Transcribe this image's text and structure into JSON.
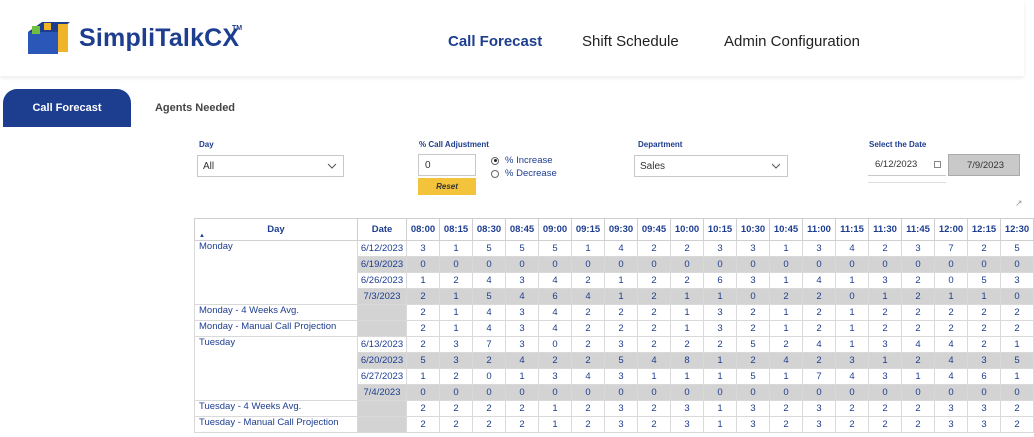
{
  "app": {
    "logo_text": "SimpliTalkCX",
    "logo_tm": "TM"
  },
  "nav": {
    "items": [
      "Call Forecast",
      "Shift Schedule",
      "Admin Configuration"
    ],
    "active": "Call Forecast"
  },
  "subtabs": {
    "items": [
      "Call Forecast",
      "Agents Needed"
    ],
    "active": "Call Forecast"
  },
  "filters": {
    "day": {
      "label": "Day",
      "value": "All"
    },
    "call_adjustment": {
      "label": "% Call Adjustment",
      "value": "0",
      "reset_label": "Reset",
      "options": [
        "% Increase",
        "% Decrease"
      ],
      "selected": "% Increase"
    },
    "department": {
      "label": "Department",
      "value": "Sales"
    },
    "date": {
      "label": "Select the Date",
      "from": "6/12/2023",
      "to": "7/9/2023"
    }
  },
  "table": {
    "day_header": "Day",
    "date_header": "Date",
    "time_columns": [
      "08:00",
      "08:15",
      "08:30",
      "08:45",
      "09:00",
      "09:15",
      "09:30",
      "09:45",
      "10:00",
      "10:15",
      "10:30",
      "10:45",
      "11:00",
      "11:15",
      "11:30",
      "11:45",
      "12:00",
      "12:15",
      "12:30"
    ],
    "groups": [
      {
        "day": "Monday",
        "rows": [
          {
            "date": "6/12/2023",
            "values": [
              "3",
              "1",
              "5",
              "5",
              "5",
              "1",
              "4",
              "2",
              "2",
              "3",
              "3",
              "1",
              "3",
              "4",
              "2",
              "3",
              "7",
              "2",
              "5"
            ]
          },
          {
            "date": "6/19/2023",
            "values": [
              "0",
              "0",
              "0",
              "0",
              "0",
              "0",
              "0",
              "0",
              "0",
              "0",
              "0",
              "0",
              "0",
              "0",
              "0",
              "0",
              "0",
              "0",
              "0"
            ]
          },
          {
            "date": "6/26/2023",
            "values": [
              "1",
              "2",
              "4",
              "3",
              "4",
              "2",
              "1",
              "2",
              "2",
              "6",
              "3",
              "1",
              "4",
              "1",
              "3",
              "2",
              "0",
              "5",
              "3"
            ]
          },
          {
            "date": "7/3/2023",
            "values": [
              "2",
              "1",
              "5",
              "4",
              "6",
              "4",
              "1",
              "2",
              "1",
              "1",
              "0",
              "2",
              "2",
              "0",
              "1",
              "2",
              "1",
              "1",
              "0"
            ]
          }
        ],
        "avg_label": "Monday - 4 Weeks Avg.",
        "avg": [
          "2",
          "1",
          "4",
          "3",
          "4",
          "2",
          "2",
          "2",
          "1",
          "3",
          "2",
          "1",
          "2",
          "1",
          "2",
          "2",
          "2",
          "2",
          "2"
        ],
        "proj_label": "Monday - Manual Call Projection",
        "proj": [
          "2",
          "1",
          "4",
          "3",
          "4",
          "2",
          "2",
          "2",
          "1",
          "3",
          "2",
          "1",
          "2",
          "1",
          "2",
          "2",
          "2",
          "2",
          "2"
        ]
      },
      {
        "day": "Tuesday",
        "rows": [
          {
            "date": "6/13/2023",
            "values": [
              "2",
              "3",
              "7",
              "3",
              "0",
              "2",
              "3",
              "2",
              "2",
              "2",
              "5",
              "2",
              "4",
              "1",
              "3",
              "4",
              "4",
              "2",
              "1"
            ]
          },
          {
            "date": "6/20/2023",
            "values": [
              "5",
              "3",
              "2",
              "4",
              "2",
              "2",
              "5",
              "4",
              "8",
              "1",
              "2",
              "4",
              "2",
              "3",
              "1",
              "2",
              "4",
              "3",
              "5"
            ]
          },
          {
            "date": "6/27/2023",
            "values": [
              "1",
              "2",
              "0",
              "1",
              "3",
              "4",
              "3",
              "1",
              "1",
              "1",
              "5",
              "1",
              "7",
              "4",
              "3",
              "1",
              "4",
              "6",
              "1"
            ]
          },
          {
            "date": "7/4/2023",
            "values": [
              "0",
              "0",
              "0",
              "0",
              "0",
              "0",
              "0",
              "0",
              "0",
              "0",
              "0",
              "0",
              "0",
              "0",
              "0",
              "0",
              "0",
              "0",
              "0"
            ]
          }
        ],
        "avg_label": "Tuesday - 4 Weeks Avg.",
        "avg": [
          "2",
          "2",
          "2",
          "2",
          "1",
          "2",
          "3",
          "2",
          "3",
          "1",
          "3",
          "2",
          "3",
          "2",
          "2",
          "2",
          "3",
          "3",
          "2"
        ],
        "proj_label": "Tuesday - Manual Call Projection",
        "proj": [
          "2",
          "2",
          "2",
          "2",
          "1",
          "2",
          "3",
          "2",
          "3",
          "1",
          "3",
          "2",
          "3",
          "2",
          "2",
          "2",
          "3",
          "3",
          "2"
        ]
      }
    ]
  },
  "colors": {
    "brand": "#1d3d8f",
    "reset": "#f3c33c",
    "shade": "#d3d3d3"
  }
}
